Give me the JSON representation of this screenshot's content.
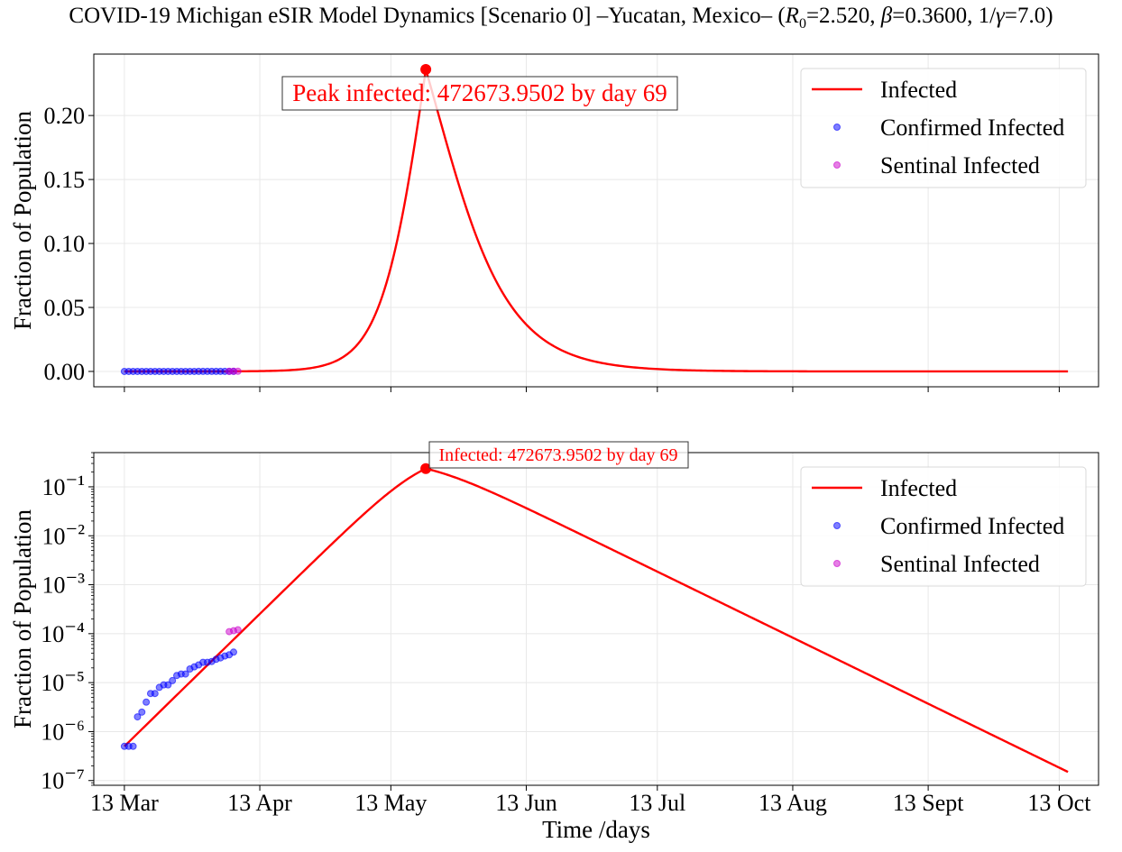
{
  "title": "COVID-19 Michigan eSIR Model Dynamics [Scenario 0] –Yucatan, Mexico– (R₀=2.520, β=0.3600, 1/γ=7.0)",
  "title_parts": {
    "main": "COVID-19 Michigan eSIR Model Dynamics [Scenario 0] –Yucatan, Mexico– (",
    "r0_symbol": "R",
    "r0_subscript": "0",
    "r0_value": "=2.520, ",
    "beta_symbol": "β",
    "beta_value": "=0.3600, 1/",
    "gamma_symbol": "γ",
    "gamma_value": "=7.0)"
  },
  "colors": {
    "infected": "#ff0000",
    "confirmed": "#0000ff",
    "sentinel": "#cc00cc",
    "grid": "#e8e8e8"
  },
  "chart_data": [
    {
      "type": "line",
      "panel": "top",
      "ylabel": "Fraction of Population",
      "yscale": "linear",
      "ylim": [
        -0.012,
        0.248
      ],
      "yticks": [
        0.0,
        0.05,
        0.1,
        0.15,
        0.2
      ],
      "ytick_labels": [
        "0.00",
        "0.05",
        "0.10",
        "0.15",
        "0.20"
      ],
      "xlim": [
        "2020-03-06",
        "2020-10-22"
      ],
      "grid": true,
      "legend_position": "top-right",
      "annotation": "Peak infected: 472673.9502 by day 69",
      "peak": {
        "x": "2020-05-21",
        "y": 0.236
      }
    },
    {
      "type": "line",
      "panel": "bottom",
      "ylabel": "Fraction of Population",
      "yscale": "log",
      "ylim": [
        8e-08,
        0.5
      ],
      "yticks": [
        1e-07,
        1e-06,
        1e-05,
        0.0001,
        0.001,
        0.01,
        0.1
      ],
      "ytick_labels": [
        "10⁻⁷",
        "10⁻⁶",
        "10⁻⁵",
        "10⁻⁴",
        "10⁻³",
        "10⁻²",
        "10⁻¹"
      ],
      "xlim": [
        "2020-03-06",
        "2020-10-22"
      ],
      "xlabel": "Time /days",
      "grid": true,
      "legend_position": "top-right",
      "annotation": "Infected: 472673.9502 by day 69",
      "peak": {
        "x": "2020-05-21",
        "y": 0.236
      }
    }
  ],
  "shared_x": {
    "ticks": [
      "2020-03-13",
      "2020-04-13",
      "2020-05-13",
      "2020-06-13",
      "2020-07-13",
      "2020-08-13",
      "2020-09-13",
      "2020-10-13"
    ],
    "tick_labels": [
      "13 Mar",
      "13 Apr",
      "13 May",
      "13 Jun",
      "13 Jul",
      "13 Aug",
      "13 Sept",
      "13 Oct"
    ]
  },
  "series": {
    "infected": {
      "name": "Infected",
      "x_start": "2020-03-13",
      "x_end": "2020-10-15",
      "peak_date": "2020-05-21",
      "peak_value": 0.236,
      "start_value": 5e-07,
      "end_value": 1.5e-07
    },
    "confirmed": {
      "name": "Confirmed Infected",
      "points": [
        {
          "x": "2020-03-13",
          "y": 5e-07
        },
        {
          "x": "2020-03-14",
          "y": 5e-07
        },
        {
          "x": "2020-03-15",
          "y": 5e-07
        },
        {
          "x": "2020-03-16",
          "y": 2e-06
        },
        {
          "x": "2020-03-17",
          "y": 2.5e-06
        },
        {
          "x": "2020-03-18",
          "y": 4e-06
        },
        {
          "x": "2020-03-19",
          "y": 6e-06
        },
        {
          "x": "2020-03-20",
          "y": 6e-06
        },
        {
          "x": "2020-03-21",
          "y": 8e-06
        },
        {
          "x": "2020-03-22",
          "y": 9e-06
        },
        {
          "x": "2020-03-23",
          "y": 9e-06
        },
        {
          "x": "2020-03-24",
          "y": 1.1e-05
        },
        {
          "x": "2020-03-25",
          "y": 1.4e-05
        },
        {
          "x": "2020-03-26",
          "y": 1.5e-05
        },
        {
          "x": "2020-03-27",
          "y": 1.5e-05
        },
        {
          "x": "2020-03-28",
          "y": 1.9e-05
        },
        {
          "x": "2020-03-29",
          "y": 2.1e-05
        },
        {
          "x": "2020-03-30",
          "y": 2.3e-05
        },
        {
          "x": "2020-03-31",
          "y": 2.6e-05
        },
        {
          "x": "2020-04-01",
          "y": 2.6e-05
        },
        {
          "x": "2020-04-02",
          "y": 2.7e-05
        },
        {
          "x": "2020-04-03",
          "y": 3e-05
        },
        {
          "x": "2020-04-04",
          "y": 3.2e-05
        },
        {
          "x": "2020-04-05",
          "y": 3.5e-05
        },
        {
          "x": "2020-04-06",
          "y": 3.7e-05
        },
        {
          "x": "2020-04-07",
          "y": 4.2e-05
        }
      ]
    },
    "sentinel": {
      "name": "Sentinal Infected",
      "points": [
        {
          "x": "2020-04-06",
          "y": 0.00011
        },
        {
          "x": "2020-04-07",
          "y": 0.000115
        },
        {
          "x": "2020-04-08",
          "y": 0.00012
        }
      ]
    }
  }
}
